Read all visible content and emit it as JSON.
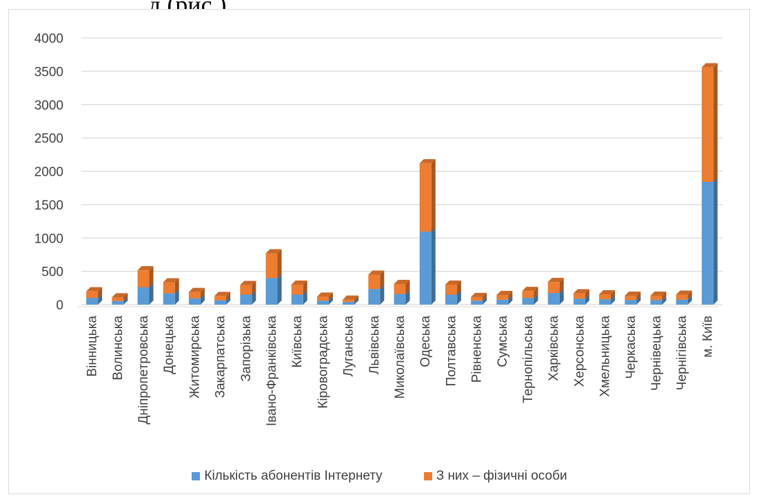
{
  "top_text": "д (рис.)",
  "chart_data": {
    "type": "bar",
    "stacked": true,
    "three_d": true,
    "title": "",
    "xlabel": "",
    "ylabel": "",
    "ylim": [
      0,
      4000
    ],
    "yticks": [
      "0",
      "500",
      "1000",
      "1500",
      "2000",
      "2500",
      "3000",
      "3500",
      "4000"
    ],
    "grid": true,
    "legend_position": "bottom",
    "categories": [
      "Вінницька",
      "Волинська",
      "Дніпропетровська",
      "Донецька",
      "Житомирська",
      "Закарпатська",
      "Запорізька",
      "Івано-Франківська",
      "Київська",
      "Кіровоградська",
      "Луганська",
      "Львівська",
      "Миколаївська",
      "Одеська",
      "Полтавська",
      "Рівненська",
      "Сумська",
      "Тернопільська",
      "Харківська",
      "Херсонська",
      "Хмельницька",
      "Черкаська",
      "Чернівецька",
      "Чернігівська",
      "м. Київ"
    ],
    "series": [
      {
        "name": "Кількість абонентів Інтернету",
        "color": "#5b9bd5",
        "values": [
          100,
          55,
          260,
          170,
          95,
          65,
          150,
          400,
          150,
          60,
          40,
          235,
          160,
          1095,
          150,
          60,
          75,
          100,
          175,
          90,
          80,
          70,
          70,
          75,
          1840
        ]
      },
      {
        "name": "З них – фізичні особи",
        "color": "#ed7d31",
        "values": [
          100,
          55,
          255,
          165,
          95,
          65,
          145,
          370,
          150,
          60,
          35,
          215,
          150,
          1025,
          150,
          55,
          70,
          105,
          165,
          80,
          75,
          65,
          65,
          75,
          1720
        ]
      }
    ]
  }
}
